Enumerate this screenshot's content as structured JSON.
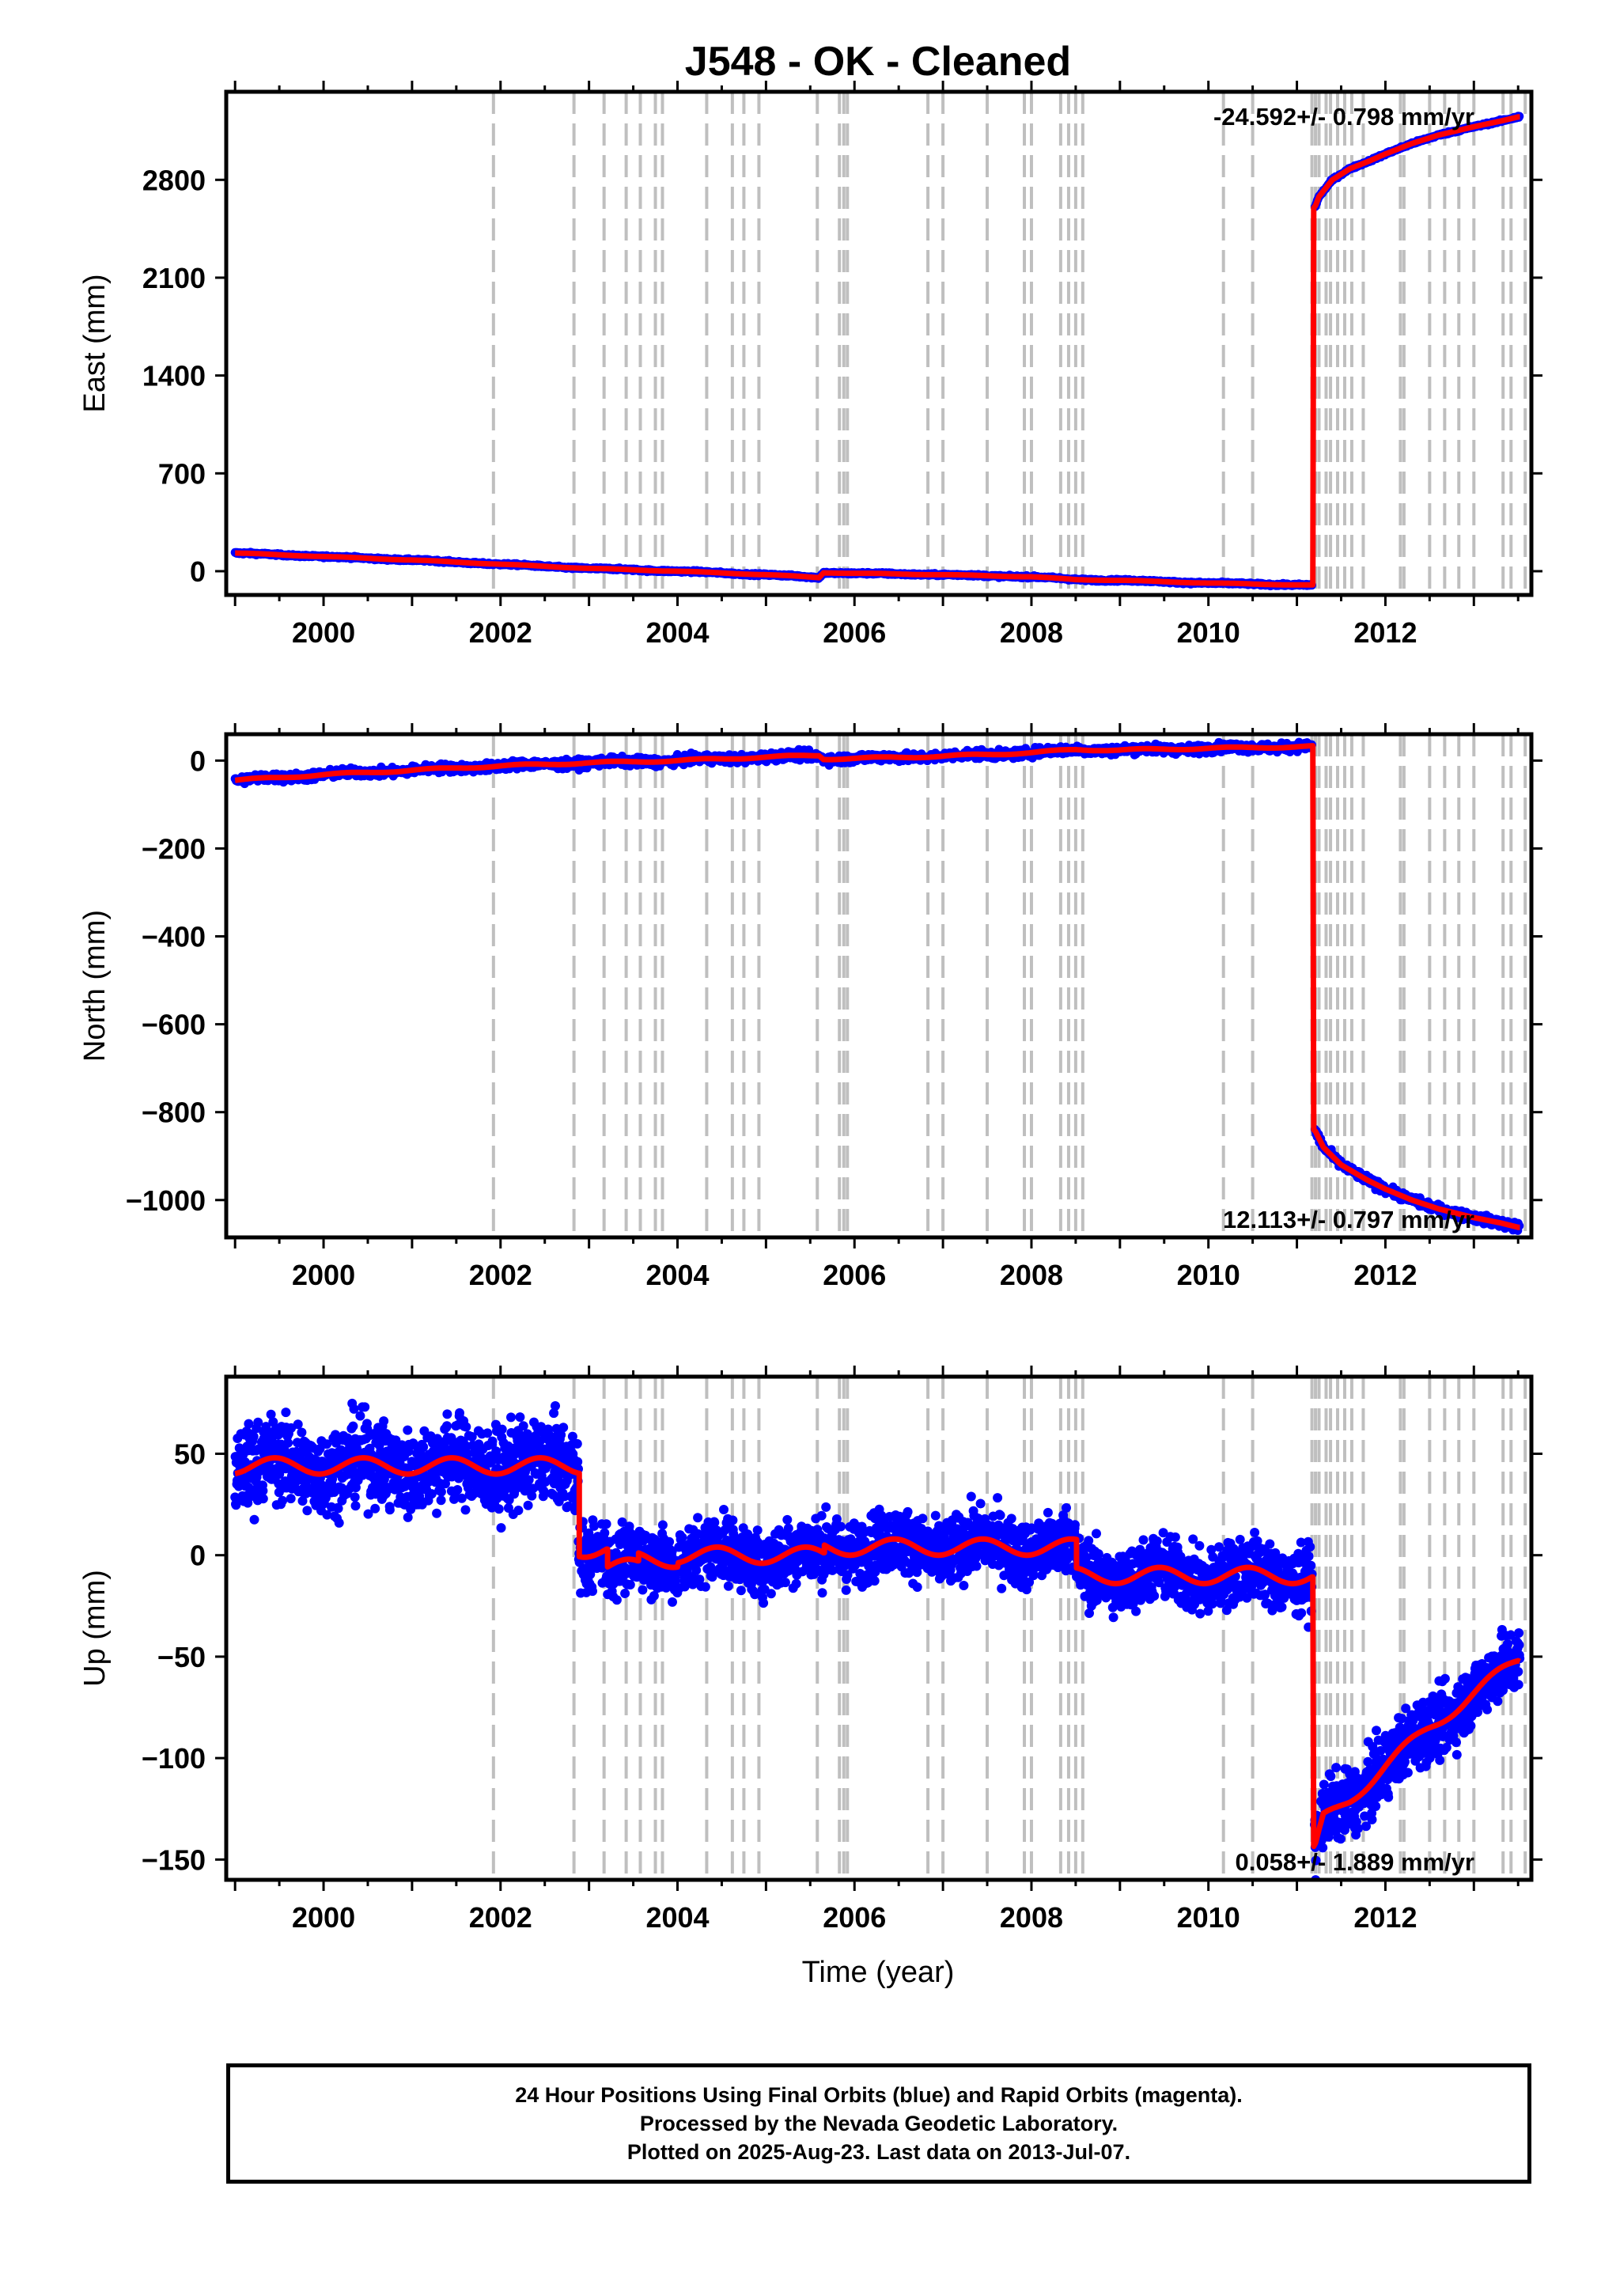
{
  "title": "J548  - OK - Cleaned",
  "colors": {
    "final_orbits": "#0000ff",
    "rapid_orbits": "#ff00ff",
    "model": "#ff0000",
    "event_lines": "#bfbfbf"
  },
  "x_axis": {
    "label": "Time (year)",
    "range": [
      1998.9,
      2013.65
    ],
    "ticks": [
      2000,
      2002,
      2004,
      2006,
      2008,
      2010,
      2012
    ]
  },
  "chart_data": [
    {
      "type": "scatter",
      "ylabel": "East (mm)",
      "ylim": [
        -170,
        3430
      ],
      "yticks": [
        0,
        700,
        1400,
        2100,
        2800
      ],
      "rate_label": "-24.592+/- 0.798 mm/yr",
      "rate_position": "top-right",
      "series": [
        {
          "name": "Final Orbits",
          "values_desc": "daily positions"
        },
        {
          "name": "Model"
        }
      ],
      "trend_points": [
        [
          1999.0,
          130
        ],
        [
          2000.0,
          105
        ],
        [
          2001.0,
          80
        ],
        [
          2002.0,
          50
        ],
        [
          2003.0,
          20
        ],
        [
          2004.0,
          0
        ],
        [
          2005.0,
          -25
        ],
        [
          2005.6,
          -45
        ],
        [
          2005.65,
          -10
        ],
        [
          2006.0,
          -15
        ],
        [
          2007.0,
          -25
        ],
        [
          2008.0,
          -40
        ],
        [
          2008.5,
          -60
        ],
        [
          2009.0,
          -65
        ],
        [
          2010.0,
          -85
        ],
        [
          2011.18,
          -100
        ]
      ],
      "post_points": [
        [
          2011.2,
          2600
        ],
        [
          2011.25,
          2680
        ],
        [
          2011.4,
          2800
        ],
        [
          2011.6,
          2880
        ],
        [
          2011.8,
          2930
        ],
        [
          2012.0,
          2985
        ],
        [
          2012.3,
          3060
        ],
        [
          2012.6,
          3120
        ],
        [
          2013.0,
          3180
        ],
        [
          2013.3,
          3220
        ],
        [
          2013.5,
          3250
        ]
      ],
      "noise": 4
    },
    {
      "type": "scatter",
      "ylabel": "North (mm)",
      "ylim": [
        -1085,
        60
      ],
      "yticks": [
        0,
        -200,
        -400,
        -600,
        -800,
        -1000
      ],
      "rate_label": "12.113+/- 0.797 mm/yr",
      "rate_position": "bottom-right",
      "series": [
        {
          "name": "Final Orbits"
        },
        {
          "name": "Model"
        }
      ],
      "trend_points": [
        [
          1999.0,
          -45
        ],
        [
          2000.0,
          -32
        ],
        [
          2001.0,
          -22
        ],
        [
          2002.0,
          -12
        ],
        [
          2003.0,
          -5
        ],
        [
          2004.0,
          0
        ],
        [
          2005.0,
          8
        ],
        [
          2005.6,
          12
        ],
        [
          2005.65,
          4
        ],
        [
          2006.0,
          5
        ],
        [
          2007.0,
          10
        ],
        [
          2008.0,
          18
        ],
        [
          2008.5,
          25
        ],
        [
          2009.0,
          24
        ],
        [
          2010.0,
          28
        ],
        [
          2011.18,
          32
        ]
      ],
      "post_points": [
        [
          2011.2,
          -840
        ],
        [
          2011.3,
          -880
        ],
        [
          2011.5,
          -920
        ],
        [
          2011.8,
          -955
        ],
        [
          2012.0,
          -975
        ],
        [
          2012.3,
          -1000
        ],
        [
          2012.6,
          -1020
        ],
        [
          2013.0,
          -1040
        ],
        [
          2013.3,
          -1052
        ],
        [
          2013.5,
          -1062
        ]
      ],
      "noise": 5
    },
    {
      "type": "scatter",
      "ylabel": "Up (mm)",
      "ylim": [
        -160,
        88
      ],
      "yticks": [
        50,
        0,
        -50,
        -100,
        -150
      ],
      "rate_label": "0.058+/- 1.889 mm/yr",
      "rate_position": "bottom-right",
      "series": [
        {
          "name": "Final Orbits"
        },
        {
          "name": "Model"
        }
      ],
      "step_times": [
        2002.88,
        2003.2,
        2003.55,
        2004.0,
        2005.65,
        2008.5,
        2011.18
      ],
      "trend_points": [
        [
          1999.0,
          44
        ],
        [
          2002.87,
          42
        ],
        [
          2002.89,
          3
        ],
        [
          2011.17,
          -10
        ],
        [
          2011.19,
          -148
        ],
        [
          2011.3,
          -130
        ],
        [
          2011.6,
          -120
        ],
        [
          2012.0,
          -104
        ],
        [
          2012.5,
          -85
        ],
        [
          2013.0,
          -68
        ],
        [
          2013.5,
          -52
        ]
      ],
      "noise": 8
    }
  ],
  "event_lines": [
    2001.92,
    2002.83,
    2003.17,
    2003.42,
    2003.58,
    2003.75,
    2003.83,
    2004.33,
    2004.62,
    2004.75,
    2004.92,
    2005.58,
    2005.83,
    2005.88,
    2005.92,
    2006.83,
    2007.0,
    2007.5,
    2007.92,
    2008.0,
    2008.33,
    2008.42,
    2008.5,
    2008.58,
    2010.17,
    2010.5,
    2011.17,
    2011.21,
    2011.25,
    2011.33,
    2011.38,
    2011.46,
    2011.54,
    2011.62,
    2011.75,
    2012.17,
    2012.21,
    2012.5,
    2012.67,
    2012.83,
    2013.0,
    2013.33,
    2013.42,
    2013.58
  ],
  "footer": {
    "line1": "24 Hour Positions Using Final Orbits (blue) and Rapid Orbits (magenta).",
    "line2": "Processed by the Nevada Geodetic Laboratory.",
    "line3": "Plotted on 2025-Aug-23. Last data on 2013-Jul-07."
  }
}
